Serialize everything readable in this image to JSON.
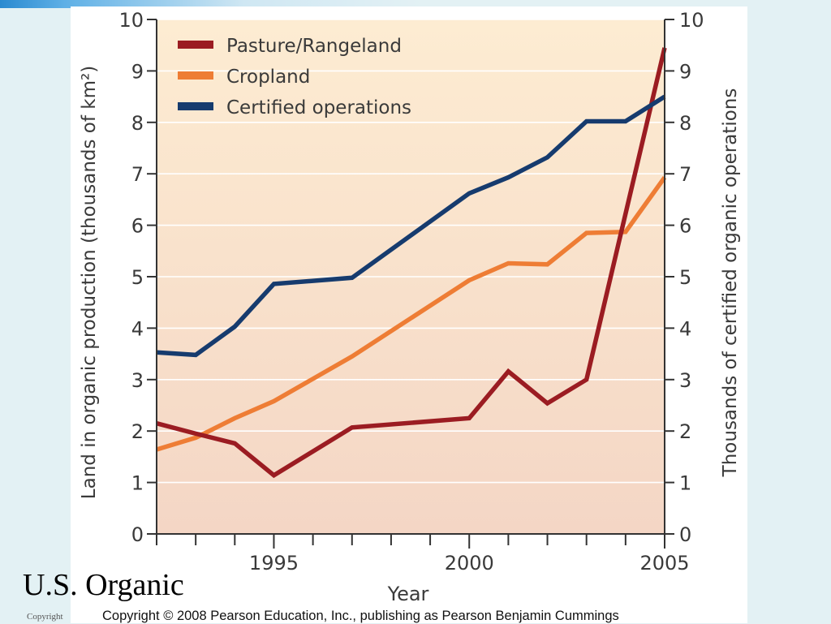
{
  "slide": {
    "title": "U.S. Organic",
    "copyright_small": "Copyright",
    "copyright_main": "Copyright © 2008 Pearson Education, Inc., publishing as Pearson Benjamin Cummings"
  },
  "chart_data": {
    "type": "line",
    "title": "",
    "xlabel": "Year",
    "ylabel_left": "Land in organic production (thousands of km²)",
    "ylabel_right": "Thousands of certified organic operations",
    "xlim": [
      1992,
      2005
    ],
    "ylim_left": [
      0,
      10
    ],
    "ylim_right": [
      0,
      10
    ],
    "x_tick_labels": [
      "1995",
      "2000",
      "2005"
    ],
    "x_tick_label_values": [
      1995,
      2000,
      2005
    ],
    "y_ticks": [
      0,
      1,
      2,
      3,
      4,
      5,
      6,
      7,
      8,
      9,
      10
    ],
    "grid": true,
    "legend_position": "top-left",
    "background_gradient": [
      "#fdecd2",
      "#f4d6c5"
    ],
    "series": [
      {
        "name": "Pasture/Rangeland",
        "color": "#9b1c22",
        "axis": "left",
        "x": [
          1992,
          1993,
          1994,
          1995,
          1997,
          2000,
          2001,
          2002,
          2003,
          2005
        ],
        "y": [
          2.15,
          1.95,
          1.76,
          1.14,
          2.07,
          2.25,
          3.16,
          2.54,
          3.0,
          9.45
        ]
      },
      {
        "name": "Cropland",
        "color": "#ee7d35",
        "axis": "left",
        "x": [
          1992,
          1993,
          1994,
          1995,
          1997,
          2000,
          2001,
          2002,
          2003,
          2004,
          2005
        ],
        "y": [
          1.64,
          1.87,
          2.25,
          2.58,
          3.45,
          4.93,
          5.26,
          5.24,
          5.85,
          5.87,
          6.93
        ]
      },
      {
        "name": "Certified operations",
        "color": "#163b6e",
        "axis": "right",
        "x": [
          1992,
          1993,
          1994,
          1995,
          1997,
          2000,
          2001,
          2002,
          2003,
          2004,
          2005
        ],
        "y": [
          3.53,
          3.48,
          4.03,
          4.86,
          4.98,
          6.62,
          6.93,
          7.32,
          8.02,
          8.02,
          8.5
        ]
      }
    ]
  }
}
